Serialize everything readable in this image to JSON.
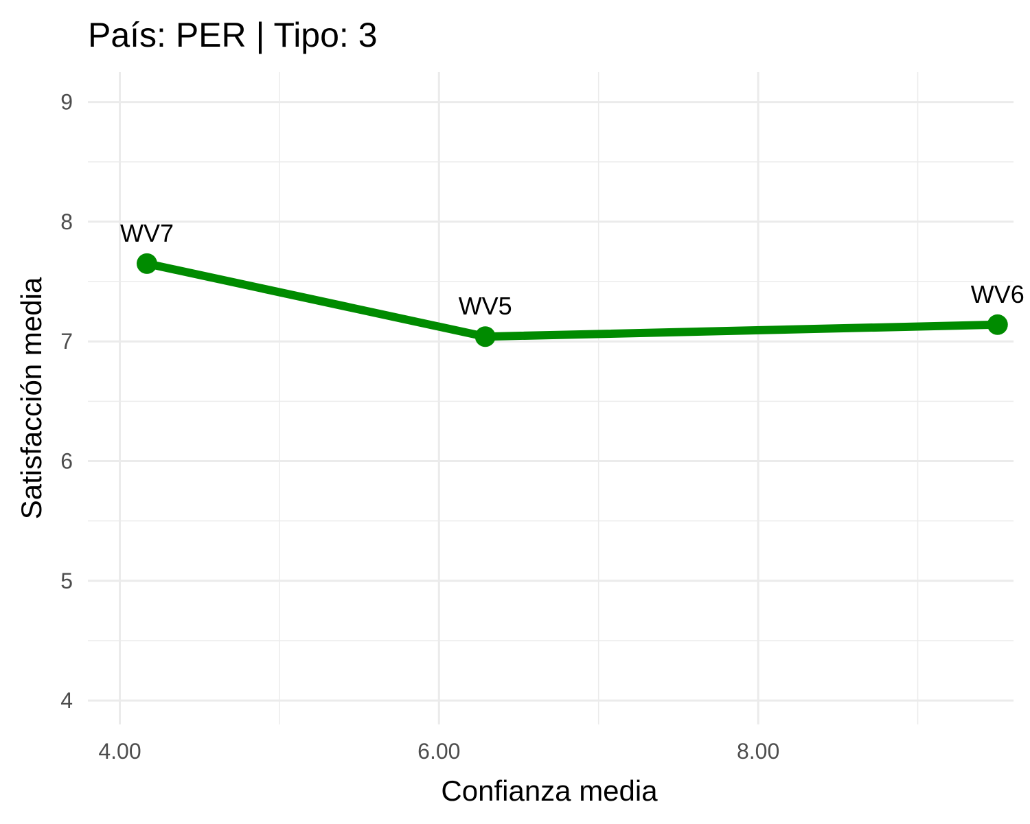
{
  "chart_data": {
    "type": "line",
    "title": "País: PER | Tipo: 3",
    "xlabel": "Confianza media",
    "ylabel": "Satisfacción media",
    "xlim": [
      3.8,
      9.6
    ],
    "ylim": [
      3.8,
      9.25
    ],
    "x_ticks": [
      4,
      6,
      8
    ],
    "x_tick_labels": [
      "4.00",
      "6.00",
      "8.00"
    ],
    "y_ticks": [
      4,
      5,
      6,
      7,
      8,
      9
    ],
    "y_tick_labels": [
      "4",
      "5",
      "6",
      "7",
      "8",
      "9"
    ],
    "grid": true,
    "color": "#008B00",
    "series": [
      {
        "points": [
          {
            "label": "WV7",
            "x": 4.17,
            "y": 7.65
          },
          {
            "label": "WV5",
            "x": 6.29,
            "y": 7.04
          },
          {
            "label": "WV6",
            "x": 9.5,
            "y": 7.14
          }
        ]
      }
    ]
  }
}
